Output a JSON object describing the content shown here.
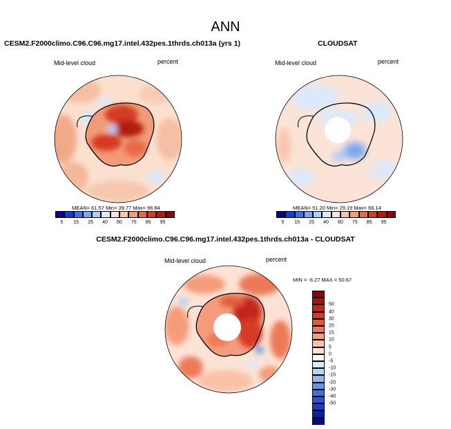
{
  "title": "ANN",
  "panels": {
    "model": {
      "subtitle": "CESM2.F2000climo.C96.C96.mg17.intel.432pes.1thrds.ch013a (yrs 1)",
      "left_label": "Mid-level cloud",
      "right_label": "percent",
      "stats": "MEAN= 61.57  Min= 39.77  Max= 96.84"
    },
    "obs": {
      "subtitle": "CLOUDSAT",
      "left_label": "Mid-level cloud",
      "right_label": "percent",
      "stats": "MEAN= 51.20  Min= 29.19  Max= 66.14"
    },
    "diff": {
      "subtitle": "CESM2.F2000climo.C96.C96.mg17.intel.432pes.1thrds.ch013a - CLOUDSAT",
      "left_label": "Mid-level cloud",
      "right_label": "percent",
      "stats": "MIN = -6.27 MAX = 50.67"
    }
  },
  "colorbar_abs": {
    "ticks": [
      "5",
      "15",
      "25",
      "40",
      "60",
      "75",
      "85",
      "95"
    ],
    "colors": [
      "#08088c",
      "#1a3dc8",
      "#3f72e0",
      "#78a8f0",
      "#aecdf6",
      "#dbe9fb",
      "#fbe4d7",
      "#f8c4aa",
      "#f29b78",
      "#e8694a",
      "#d43b23",
      "#b01a10",
      "#850a08"
    ]
  },
  "colorbar_diff": {
    "ticks": [
      "50",
      "40",
      "30",
      "20",
      "15",
      "10",
      "5",
      "0",
      "-5",
      "-10",
      "-15",
      "-20",
      "-30",
      "-40",
      "-50"
    ],
    "colors": [
      "#850a08",
      "#a41410",
      "#c0261a",
      "#d43b23",
      "#e25a3c",
      "#ec7a58",
      "#f49d7c",
      "#f9c2a8",
      "#fde3d5",
      "#ffffff",
      "#dbe9fb",
      "#b8d5f7",
      "#8db8f0",
      "#6198e6",
      "#3f72e0",
      "#2a55d0",
      "#1a3dc8",
      "#0d20a0",
      "#08088c"
    ]
  }
}
